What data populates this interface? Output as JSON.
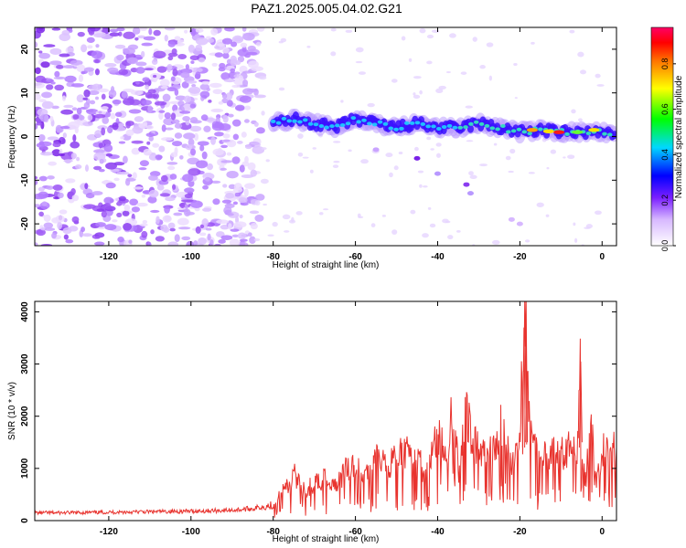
{
  "title": "PAZ1.2025.005.04.02.G21",
  "chart_data": [
    {
      "type": "heatmap",
      "xlabel": "Height of straight line (km)",
      "ylabel": "Frequency (Hz)",
      "xlim": [
        -138,
        3.5
      ],
      "ylim": [
        -25,
        25
      ],
      "x_ticks": [
        -120,
        -100,
        -80,
        -60,
        -40,
        -20,
        0
      ],
      "y_ticks": [
        -20,
        -10,
        0,
        10,
        20
      ],
      "colorbar": {
        "label": "Normalized spectral amplitude",
        "range": [
          0,
          0.96
        ],
        "ticks": [
          0.0,
          0.2,
          0.4,
          0.6,
          0.8
        ],
        "colormap": "white-violet-blue-cyan-green-yellow-red-magenta"
      },
      "signal_ridge": {
        "x": [
          -80,
          -75,
          -70,
          -65,
          -60,
          -55,
          -50,
          -45,
          -40,
          -35,
          -30,
          -25,
          -20,
          -15,
          -10,
          -5,
          0,
          3
        ],
        "frequency": [
          3,
          4,
          3,
          2,
          4,
          3,
          2,
          3,
          2,
          2,
          3,
          2,
          1,
          1.5,
          1,
          1,
          1,
          0
        ]
      }
    },
    {
      "type": "line",
      "xlabel": "Height of straight line (km)",
      "ylabel": "SNR (10 * v/v)",
      "xlim": [
        -138,
        3.5
      ],
      "ylim": [
        0,
        4200
      ],
      "x_ticks": [
        -120,
        -100,
        -80,
        -60,
        -40,
        -20,
        0
      ],
      "y_ticks": [
        0,
        1000,
        2000,
        3000,
        4000
      ],
      "series": [
        {
          "color": "#e8332e",
          "x": [
            -138,
            -130,
            -120,
            -110,
            -100,
            -90,
            -85,
            -80,
            -78,
            -75,
            -72,
            -70,
            -68,
            -65,
            -62,
            -60,
            -58,
            -55,
            -52,
            -50,
            -48,
            -45,
            -43,
            -40,
            -38,
            -36,
            -35,
            -33,
            -31,
            -30,
            -28,
            -26,
            -25,
            -24,
            -22,
            -20,
            -19,
            -18.5,
            -18,
            -17,
            -15,
            -12,
            -10,
            -8,
            -7,
            -6,
            -5.2,
            -5,
            -4,
            -3,
            -2.2,
            -2,
            -1,
            0,
            1,
            2,
            3,
            3.5
          ],
          "y": [
            150,
            150,
            160,
            170,
            180,
            200,
            230,
            300,
            500,
            900,
            600,
            700,
            800,
            700,
            1000,
            1100,
            900,
            1200,
            1000,
            1300,
            1300,
            1200,
            900,
            1700,
            1300,
            2300,
            900,
            2050,
            1500,
            1400,
            1250,
            1350,
            1600,
            2000,
            1000,
            1700,
            3700,
            4200,
            2500,
            1500,
            1300,
            1350,
            1300,
            1350,
            1300,
            1200,
            3050,
            1500,
            700,
            1600,
            2000,
            700,
            900,
            1300,
            1500,
            1300,
            1400,
            1100
          ]
        }
      ]
    }
  ]
}
